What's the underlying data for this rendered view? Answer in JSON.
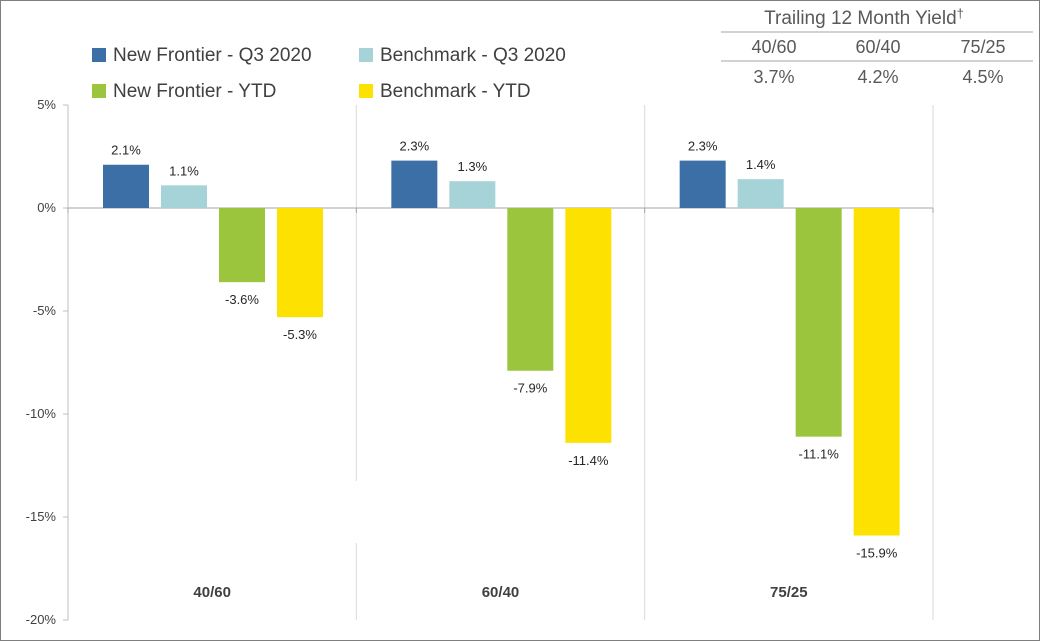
{
  "chart_data": {
    "type": "bar",
    "categories": [
      "40/60",
      "60/40",
      "75/25"
    ],
    "series": [
      {
        "name": "New Frontier - Q3 2020",
        "color": "#3b6fa6",
        "values": [
          2.1,
          2.3,
          2.3
        ],
        "labels": [
          "2.1%",
          "2.3%",
          "2.3%"
        ]
      },
      {
        "name": "Benchmark - Q3 2020",
        "color": "#a6d3d8",
        "values": [
          1.1,
          1.3,
          1.4
        ],
        "labels": [
          "1.1%",
          "1.3%",
          "1.4%"
        ]
      },
      {
        "name": "New Frontier - YTD",
        "color": "#9bc53d",
        "values": [
          -3.6,
          -7.9,
          -11.1
        ],
        "labels": [
          "-3.6%",
          "-7.9%",
          "-11.1%"
        ]
      },
      {
        "name": "Benchmark - YTD",
        "color": "#fde100",
        "values": [
          -5.3,
          -11.4,
          -15.9
        ],
        "labels": [
          "-5.3%",
          "-11.4%",
          "-15.9%"
        ]
      }
    ],
    "ylim": [
      -20,
      5
    ],
    "yticks": [
      5,
      0,
      -5,
      -10,
      -15,
      -20
    ],
    "ytick_labels": [
      "5%",
      "0%",
      "-5%",
      "-10%",
      "-15%",
      "-20%"
    ],
    "legend_position": "top-left",
    "grid": false
  },
  "yield_table": {
    "title": "Trailing 12 Month Yield",
    "title_mark": "†",
    "headers": [
      "40/60",
      "60/40",
      "75/25"
    ],
    "values": [
      "3.7%",
      "4.2%",
      "4.5%"
    ]
  }
}
